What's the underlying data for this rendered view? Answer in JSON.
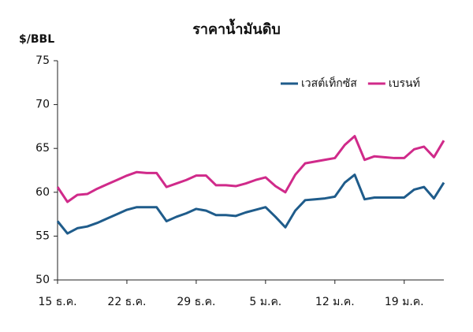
{
  "chart_data": {
    "type": "line",
    "title": "ราคาน้ำมันดิบ",
    "y_label": "$/BBL",
    "categories": [
      "15 ธ.ค.",
      null,
      null,
      null,
      null,
      null,
      null,
      "22 ธ.ค.",
      null,
      null,
      null,
      null,
      null,
      null,
      "29 ธ.ค.",
      null,
      null,
      null,
      null,
      null,
      null,
      "5 ม.ค.",
      null,
      null,
      null,
      null,
      null,
      null,
      "12 ม.ค.",
      null,
      null,
      null,
      null,
      null,
      null,
      "19 ม.ค.",
      null,
      null,
      null,
      null
    ],
    "series": [
      {
        "name": "เวสต์เท็กซัส",
        "color": "#1f5c8b",
        "values": [
          56.7,
          55.3,
          55.9,
          56.1,
          56.5,
          57.0,
          57.5,
          58.0,
          58.3,
          58.3,
          58.3,
          56.7,
          57.2,
          57.6,
          58.1,
          57.9,
          57.4,
          57.4,
          57.3,
          57.7,
          58.0,
          58.3,
          57.2,
          56.0,
          57.9,
          59.1,
          59.2,
          59.3,
          59.5,
          61.1,
          62.0,
          59.2,
          59.4,
          59.4,
          59.4,
          59.4,
          60.3,
          60.6,
          59.3,
          61.1
        ]
      },
      {
        "name": "เบรนท์",
        "color": "#d02a8a",
        "values": [
          60.6,
          58.9,
          59.7,
          59.8,
          60.4,
          60.9,
          61.4,
          61.9,
          62.3,
          62.2,
          62.2,
          60.6,
          61.0,
          61.4,
          61.9,
          61.9,
          60.8,
          60.8,
          60.7,
          61.0,
          61.4,
          61.7,
          60.7,
          60.0,
          62.0,
          63.3,
          63.5,
          63.7,
          63.9,
          65.4,
          66.4,
          63.7,
          64.1,
          64.0,
          63.9,
          63.9,
          64.9,
          65.2,
          64.0,
          65.9
        ]
      }
    ],
    "ylim": [
      50,
      75
    ],
    "yticks": [
      50,
      55,
      60,
      65,
      70,
      75
    ],
    "grid": false,
    "legend": "top-right"
  }
}
